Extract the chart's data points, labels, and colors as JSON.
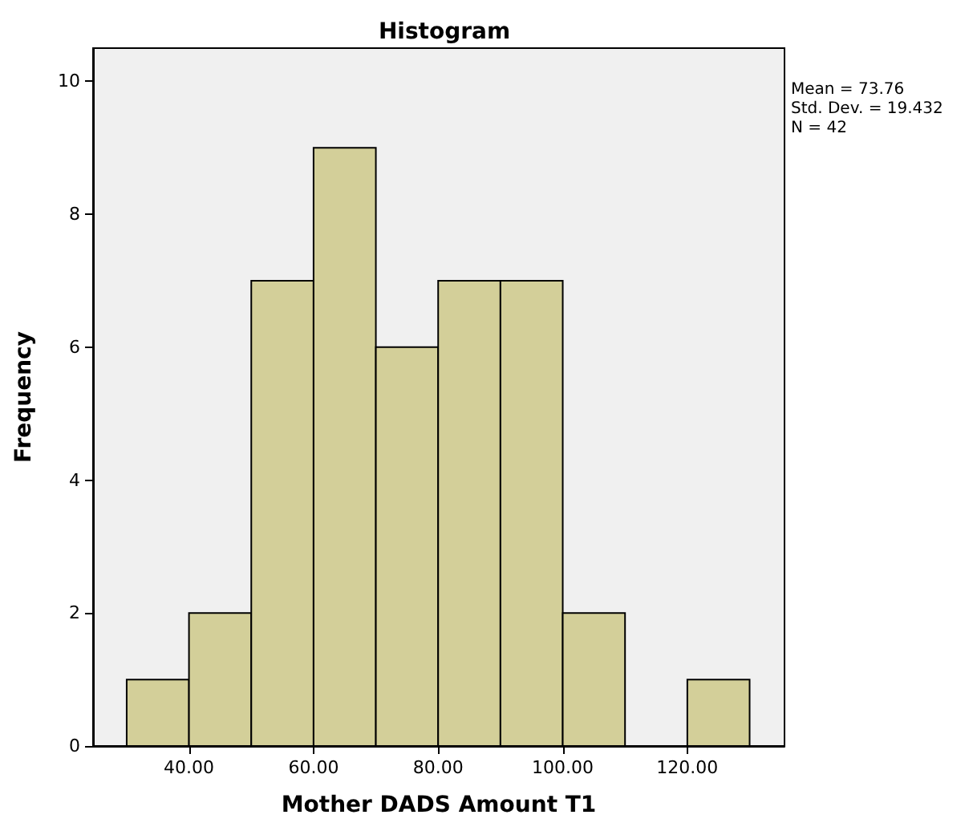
{
  "chart_data": {
    "type": "histogram",
    "title": "Histogram",
    "xlabel": "Mother DADS Amount T1",
    "ylabel": "Frequency",
    "bins": [
      30,
      40,
      50,
      60,
      70,
      80,
      90,
      100,
      110,
      120,
      130
    ],
    "values": [
      1,
      2,
      7,
      9,
      6,
      7,
      7,
      2,
      0,
      1
    ],
    "color": "#d3cf99",
    "xlim": [
      24.6,
      135.6
    ],
    "xticks": [
      {
        "value": 40,
        "label": "40.00"
      },
      {
        "value": 60,
        "label": "60.00"
      },
      {
        "value": 80,
        "label": "80.00"
      },
      {
        "value": 100,
        "label": "100.00"
      },
      {
        "value": 120,
        "label": "120.00"
      }
    ],
    "ylim": [
      0,
      10.5
    ],
    "yticks": [
      0,
      2,
      4,
      6,
      8,
      10
    ],
    "grid": false,
    "annotations": [
      "Mean = 73.76",
      "Std. Dev. = 19.432",
      "N = 42"
    ]
  }
}
